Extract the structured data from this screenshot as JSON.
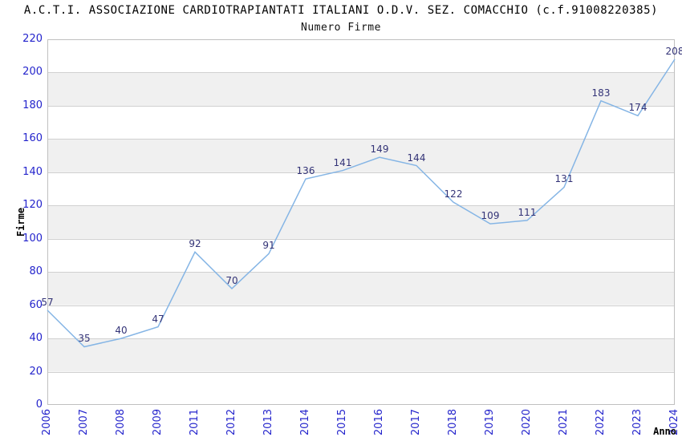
{
  "chart_data": {
    "type": "line",
    "title": "A.C.T.I. ASSOCIAZIONE CARDIOTRAPIANTATI ITALIANI O.D.V. SEZ. COMACCHIO (c.f.91008220385)",
    "subtitle": "Numero Firme",
    "xlabel": "Anno",
    "ylabel": "Firme",
    "categories": [
      "2006",
      "2007",
      "2008",
      "2009",
      "2011",
      "2012",
      "2013",
      "2014",
      "2015",
      "2016",
      "2017",
      "2018",
      "2019",
      "2020",
      "2021",
      "2022",
      "2023",
      "2024"
    ],
    "values": [
      57,
      35,
      40,
      47,
      92,
      70,
      91,
      136,
      141,
      149,
      144,
      122,
      109,
      111,
      131,
      183,
      174,
      208
    ],
    "ylim": [
      0,
      220
    ],
    "ytick_step": 20,
    "point_labels_visible": true,
    "legend": "none",
    "grid": "horizontal gridlines with alternating shaded bands",
    "markers": "none",
    "colors": {
      "line": "#85b5e5",
      "point_label": "#333377",
      "tick_label": "#2424cc",
      "band": "#f0f0f0",
      "gridline": "#d0d0d0",
      "plot_border": "#c0c0c0",
      "background": "#ffffff",
      "title_text": "#000000"
    }
  }
}
